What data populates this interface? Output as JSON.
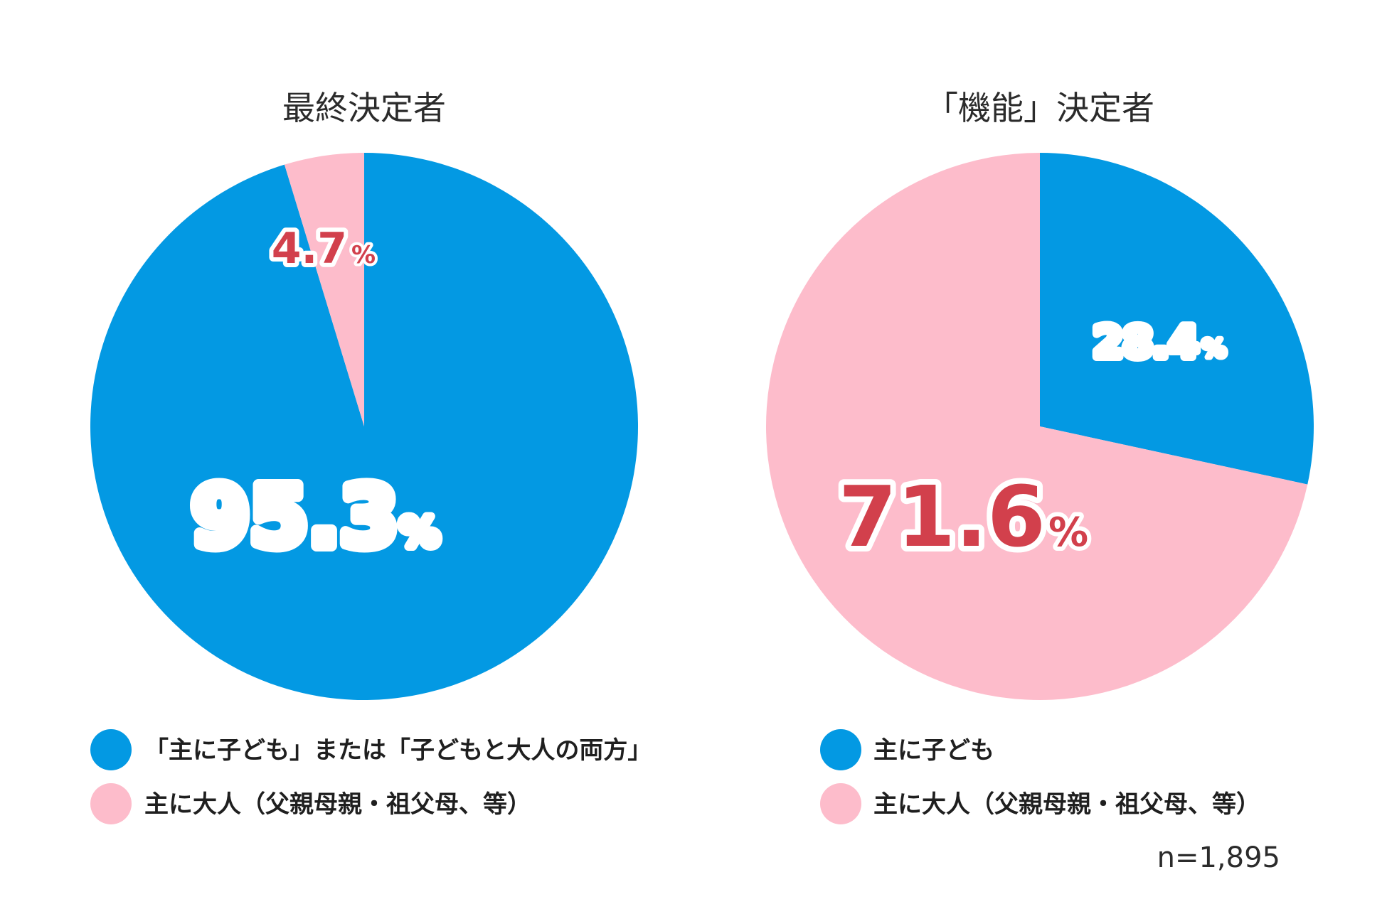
{
  "colors": {
    "children": "#0399e3",
    "adults": "#fdbccb",
    "label_on_blue": "#ffffff",
    "label_on_pink": "#d2404c",
    "label_outline_blue": "#0399e3"
  },
  "chart_data": [
    {
      "type": "pie",
      "title": "最終決定者",
      "start_angle_deg": 0,
      "slices": [
        {
          "key": "children",
          "label": "「主に子ども」または「子どもと大人の両方」",
          "value": 95.3,
          "display": "95.3",
          "unit": "%"
        },
        {
          "key": "adults",
          "label": "主に大人（父親母親・祖父母、等）",
          "value": 4.7,
          "display": "4.7",
          "unit": "%"
        }
      ],
      "legend": [
        {
          "key": "children",
          "text": "「主に子ども」または「子どもと大人の両方」"
        },
        {
          "key": "adults",
          "text": "主に大人（父親母親・祖父母、等）"
        }
      ]
    },
    {
      "type": "pie",
      "title": "「機能」決定者",
      "start_angle_deg": 0,
      "slices": [
        {
          "key": "children",
          "label": "主に子ども",
          "value": 28.4,
          "display": "28.4",
          "unit": "%"
        },
        {
          "key": "adults",
          "label": "主に大人（父親母親・祖父母、等）",
          "value": 71.6,
          "display": "71.6",
          "unit": "%"
        }
      ],
      "legend": [
        {
          "key": "children",
          "text": "主に子ども"
        },
        {
          "key": "adults",
          "text": "主に大人（父親母親・祖父母、等）"
        }
      ]
    }
  ],
  "note": "n=1,895"
}
